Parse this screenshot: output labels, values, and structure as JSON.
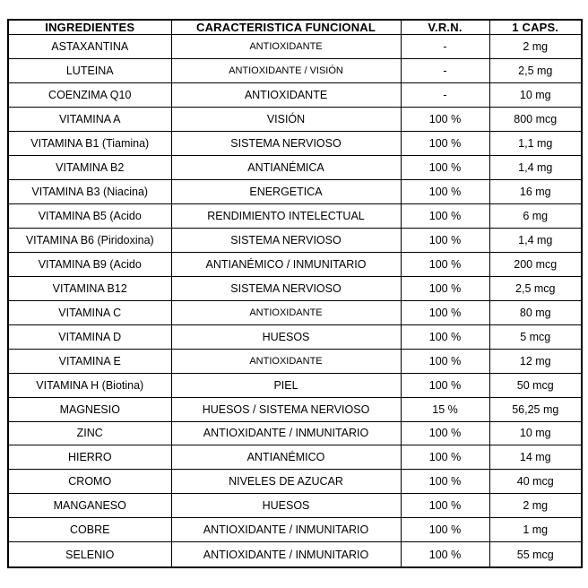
{
  "colors": {
    "background": "#ffffff",
    "border": "#000000",
    "text": "#000000"
  },
  "table": {
    "headers": [
      "INGREDIENTES",
      "CARACTERISTICA FUNCIONAL",
      "V.R.N.",
      "1 CAPS."
    ],
    "rows": [
      {
        "ingredient": "ASTAXANTINA",
        "function": "ANTIOXIDANTE",
        "function_small": true,
        "vrn": "-",
        "caps": "2 mg"
      },
      {
        "ingredient": "LUTEINA",
        "function": "ANTIOXIDANTE / VISIÓN",
        "function_small": true,
        "vrn": "-",
        "caps": "2,5 mg"
      },
      {
        "ingredient": "COENZIMA Q10",
        "function": "ANTIOXIDANTE",
        "function_small": false,
        "vrn": "-",
        "caps": "10 mg"
      },
      {
        "ingredient": "VITAMINA A",
        "function": "VISIÓN",
        "function_small": false,
        "vrn": "100 %",
        "caps": "800 mcg"
      },
      {
        "ingredient": "VITAMINA B1 (Tiamina)",
        "function": "SISTEMA NERVIOSO",
        "function_small": false,
        "vrn": "100 %",
        "caps": "1,1 mg"
      },
      {
        "ingredient": "VITAMINA B2",
        "function": "ANTIANÉMICA",
        "function_small": false,
        "vrn": "100 %",
        "caps": "1,4 mg"
      },
      {
        "ingredient": "VITAMINA B3 (Niacina)",
        "function": "ENERGETICA",
        "function_small": false,
        "vrn": "100 %",
        "caps": "16 mg"
      },
      {
        "ingredient": "VITAMINA B5 (Acido",
        "function": "RENDIMIENTO INTELECTUAL",
        "function_small": false,
        "vrn": "100 %",
        "caps": "6 mg"
      },
      {
        "ingredient": "VITAMINA B6 (Piridoxina)",
        "function": "SISTEMA NERVIOSO",
        "function_small": false,
        "vrn": "100 %",
        "caps": "1,4 mg"
      },
      {
        "ingredient": "VITAMINA B9 (Acido",
        "function": "ANTIANÉMICO / INMUNITARIO",
        "function_small": false,
        "vrn": "100 %",
        "caps": "200 mcg"
      },
      {
        "ingredient": "VITAMINA B12",
        "function": "SISTEMA NERVIOSO",
        "function_small": false,
        "vrn": "100 %",
        "caps": "2,5 mcg"
      },
      {
        "ingredient": "VITAMINA C",
        "function": "ANTIOXIDANTE",
        "function_small": true,
        "vrn": "100 %",
        "caps": "80 mg"
      },
      {
        "ingredient": "VITAMINA D",
        "function": "HUESOS",
        "function_small": false,
        "vrn": "100 %",
        "caps": "5 mcg"
      },
      {
        "ingredient": "VITAMINA E",
        "function": "ANTIOXIDANTE",
        "function_small": true,
        "vrn": "100 %",
        "caps": "12 mg"
      },
      {
        "ingredient": "VITAMINA H (Biotina)",
        "function": "PIEL",
        "function_small": false,
        "vrn": "100 %",
        "caps": "50 mcg"
      },
      {
        "ingredient": "MAGNESIO",
        "function": "HUESOS / SISTEMA NERVIOSO",
        "function_small": false,
        "vrn": "15 %",
        "caps": "56,25 mg"
      },
      {
        "ingredient": "ZINC",
        "function": "ANTIOXIDANTE / INMUNITARIO",
        "function_small": false,
        "vrn": "100 %",
        "caps": "10 mg"
      },
      {
        "ingredient": "HIERRO",
        "function": "ANTIANÉMICO",
        "function_small": false,
        "vrn": "100 %",
        "caps": "14 mg"
      },
      {
        "ingredient": "CROMO",
        "function": "NIVELES DE AZUCAR",
        "function_small": false,
        "vrn": "100 %",
        "caps": "40 mcg"
      },
      {
        "ingredient": "MANGANESO",
        "function": "HUESOS",
        "function_small": false,
        "vrn": "100 %",
        "caps": "2 mg"
      },
      {
        "ingredient": "COBRE",
        "function": "ANTIOXIDANTE / INMUNITARIO",
        "function_small": false,
        "vrn": "100 %",
        "caps": "1 mg"
      },
      {
        "ingredient": "SELENIO",
        "function": "ANTIOXIDANTE / INMUNITARIO",
        "function_small": false,
        "vrn": "100 %",
        "caps": "55 mcg"
      }
    ]
  }
}
